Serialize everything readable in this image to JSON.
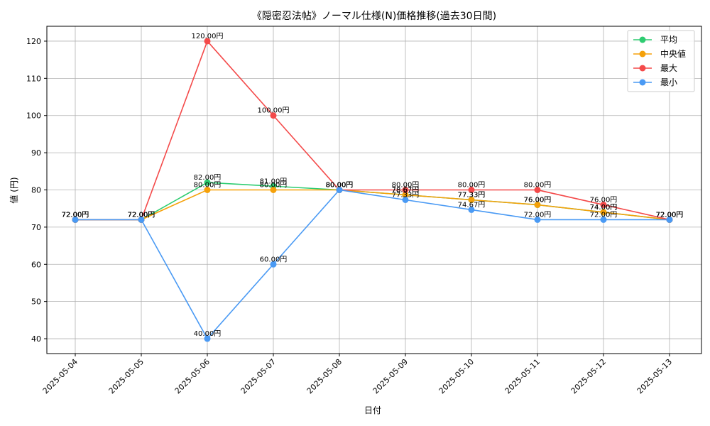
{
  "chart_data": {
    "type": "line",
    "title": "《隠密忍法帖》ノーマル仕様(N)価格推移(過去30日間)",
    "xlabel": "日付",
    "ylabel": "値 (円)",
    "categories": [
      "2025-05-04",
      "2025-05-05",
      "2025-05-06",
      "2025-05-07",
      "2025-05-08",
      "2025-05-09",
      "2025-05-10",
      "2025-05-11",
      "2025-05-12",
      "2025-05-13"
    ],
    "ylim": [
      36,
      124
    ],
    "yticks": [
      40,
      50,
      60,
      70,
      80,
      90,
      100,
      110,
      120
    ],
    "grid": true,
    "legend_position": "top-right",
    "series": [
      {
        "name": "平均",
        "color": "#2ecc71",
        "values": [
          72.0,
          72.0,
          82.0,
          81.0,
          80.0,
          78.67,
          77.33,
          76.0,
          74.0,
          72.0
        ],
        "labels": [
          "72.00円",
          "72.00円",
          "82.00円",
          "81.00円",
          "80.00円",
          "78.67円",
          "77.33円",
          "76.00円",
          "74.00円",
          "72.00円"
        ]
      },
      {
        "name": "中央値",
        "color": "#f5a10a",
        "values": [
          72.0,
          72.0,
          80.0,
          80.0,
          80.0,
          78.67,
          77.33,
          76.0,
          74.0,
          72.0
        ],
        "labels": [
          "72.00円",
          "72.00円",
          "80.00円",
          "80.00円",
          "80.00円",
          "78.67円",
          "77.33円",
          "76.00円",
          "74.00円",
          "72.00円"
        ]
      },
      {
        "name": "最大",
        "color": "#f44a4a",
        "values": [
          72.0,
          72.0,
          120.0,
          100.0,
          80.0,
          80.0,
          80.0,
          80.0,
          76.0,
          72.0
        ],
        "labels": [
          "72.00円",
          "72.00円",
          "120.00円",
          "100.00円",
          "80.00円",
          "80.00円",
          "80.00円",
          "80.00円",
          "76.00円",
          "72.00円"
        ]
      },
      {
        "name": "最小",
        "color": "#4a9af4",
        "values": [
          72.0,
          72.0,
          40.0,
          60.0,
          80.0,
          77.33,
          74.67,
          72.0,
          72.0,
          72.0
        ],
        "labels": [
          "72.00円",
          "72.00円",
          "40.00円",
          "60.00円",
          "80.00円",
          "77.33円",
          "74.67円",
          "72.00円",
          "72.00円",
          "72.00円"
        ]
      }
    ]
  }
}
